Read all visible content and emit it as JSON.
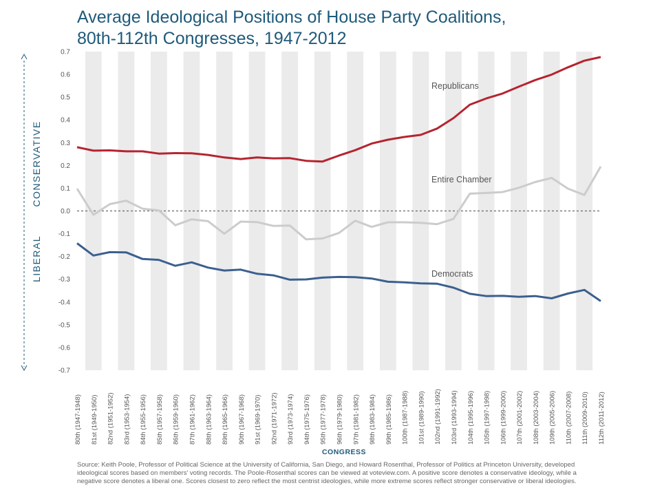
{
  "title_line1": "Average Ideological Positions of House Party Coalitions,",
  "title_line2": "80th-112th Congresses, 1947-2012",
  "source": "Source: Keith Poole, Professor of Political Science at the University of California, San Diego, and Howard Rosenthal, Professor of Politics at Princeton University, developed ideological scores based on members' voting records. The Poole-Rosenthal scores can be viewed at voteview.com. A positive score denotes a conservative ideology, while a negative score denotes a liberal one. Scores closest to zero reflect the most centrist ideologies, while more extreme scores reflect stronger conservative or liberal ideologies.",
  "colors": {
    "title": "#1e5a7a",
    "republicans": "#b5242f",
    "democrats": "#3b5f8f",
    "chamber": "#cccccc",
    "band": "#ebebeb",
    "axis_text": "#555555",
    "ylabel": "#1e5a7a"
  },
  "chart_data": {
    "type": "line",
    "title": "Average Ideological Positions of House Party Coalitions, 80th-112th Congresses, 1947-2012",
    "xlabel": "CONGRESS",
    "ylabel_left": "LIBERAL",
    "ylabel_right": "CONSERVATIVE",
    "ylim": [
      -0.7,
      0.7
    ],
    "yticks": [
      "0.7",
      "0.6",
      "0.5",
      "0.4",
      "0.3",
      "0.2",
      "0.1",
      "0.0",
      "-0.1",
      "-0.2",
      "-0.3",
      "-0.4",
      "-0.5",
      "-0.6",
      "-0.7"
    ],
    "categories": [
      {
        "num": "80th",
        "years": "(1947-1948)"
      },
      {
        "num": "81st",
        "years": "(1949-1950)"
      },
      {
        "num": "82nd",
        "years": "(1951-1952)"
      },
      {
        "num": "83rd",
        "years": "(1953-1954)"
      },
      {
        "num": "84th",
        "years": "(1955-1956)"
      },
      {
        "num": "85th",
        "years": "(1957-1958)"
      },
      {
        "num": "86th",
        "years": "(1959-1960)"
      },
      {
        "num": "87th",
        "years": "(1961-1962)"
      },
      {
        "num": "88th",
        "years": "(1963-1964)"
      },
      {
        "num": "89th",
        "years": "(1965-1966)"
      },
      {
        "num": "90th",
        "years": "(1967-1968)"
      },
      {
        "num": "91st",
        "years": "(1969-1970)"
      },
      {
        "num": "92nd",
        "years": "(1971-1972)"
      },
      {
        "num": "93rd",
        "years": "(1973-1974)"
      },
      {
        "num": "94th",
        "years": "(1975-1976)"
      },
      {
        "num": "95th",
        "years": "(1977-1978)"
      },
      {
        "num": "96th",
        "years": "(1979-1980)"
      },
      {
        "num": "97th",
        "years": "(1981-1982)"
      },
      {
        "num": "98th",
        "years": "(1983-1984)"
      },
      {
        "num": "99th",
        "years": "(1985-1986)"
      },
      {
        "num": "100th",
        "years": "(1987-1988)"
      },
      {
        "num": "101st",
        "years": "(1989-1990)"
      },
      {
        "num": "102nd",
        "years": "(1991-1992)"
      },
      {
        "num": "103rd",
        "years": "(1993-1994)"
      },
      {
        "num": "104th",
        "years": "(1995-1996)"
      },
      {
        "num": "105th",
        "years": "(1997-1998)"
      },
      {
        "num": "106th",
        "years": "(1999-2000)"
      },
      {
        "num": "107th",
        "years": "(2001-2002)"
      },
      {
        "num": "108th",
        "years": "(2003-2004)"
      },
      {
        "num": "109th",
        "years": "(2005-2006)"
      },
      {
        "num": "110th",
        "years": "(2007-2008)"
      },
      {
        "num": "111th",
        "years": "(2009-2010)"
      },
      {
        "num": "112th",
        "years": "(2011-2012)"
      }
    ],
    "series": [
      {
        "name": "Republicans",
        "color_key": "republicans",
        "values": [
          0.28,
          0.265,
          0.266,
          0.262,
          0.262,
          0.252,
          0.254,
          0.253,
          0.246,
          0.235,
          0.228,
          0.235,
          0.231,
          0.232,
          0.22,
          0.217,
          0.243,
          0.267,
          0.296,
          0.313,
          0.325,
          0.334,
          0.362,
          0.408,
          0.467,
          0.494,
          0.516,
          0.546,
          0.575,
          0.599,
          0.631,
          0.66,
          0.676
        ]
      },
      {
        "name": "Entire Chamber",
        "color_key": "chamber",
        "values": [
          0.098,
          -0.017,
          0.03,
          0.045,
          0.01,
          0.002,
          -0.063,
          -0.037,
          -0.045,
          -0.1,
          -0.047,
          -0.049,
          -0.066,
          -0.064,
          -0.125,
          -0.121,
          -0.097,
          -0.043,
          -0.07,
          -0.05,
          -0.05,
          -0.052,
          -0.058,
          -0.035,
          0.076,
          0.079,
          0.083,
          0.102,
          0.127,
          0.145,
          0.098,
          0.07,
          0.195
        ]
      },
      {
        "name": "Democrats",
        "color_key": "democrats",
        "values": [
          -0.142,
          -0.196,
          -0.181,
          -0.182,
          -0.211,
          -0.215,
          -0.241,
          -0.226,
          -0.249,
          -0.262,
          -0.258,
          -0.276,
          -0.283,
          -0.302,
          -0.301,
          -0.293,
          -0.29,
          -0.291,
          -0.297,
          -0.311,
          -0.314,
          -0.318,
          -0.32,
          -0.337,
          -0.364,
          -0.374,
          -0.373,
          -0.377,
          -0.374,
          -0.384,
          -0.363,
          -0.347,
          -0.396
        ]
      }
    ],
    "annotations": [
      {
        "text": "Republicans",
        "series": "Republicans"
      },
      {
        "text": "Entire Chamber",
        "series": "Entire Chamber"
      },
      {
        "text": "Democrats",
        "series": "Democrats"
      }
    ]
  }
}
